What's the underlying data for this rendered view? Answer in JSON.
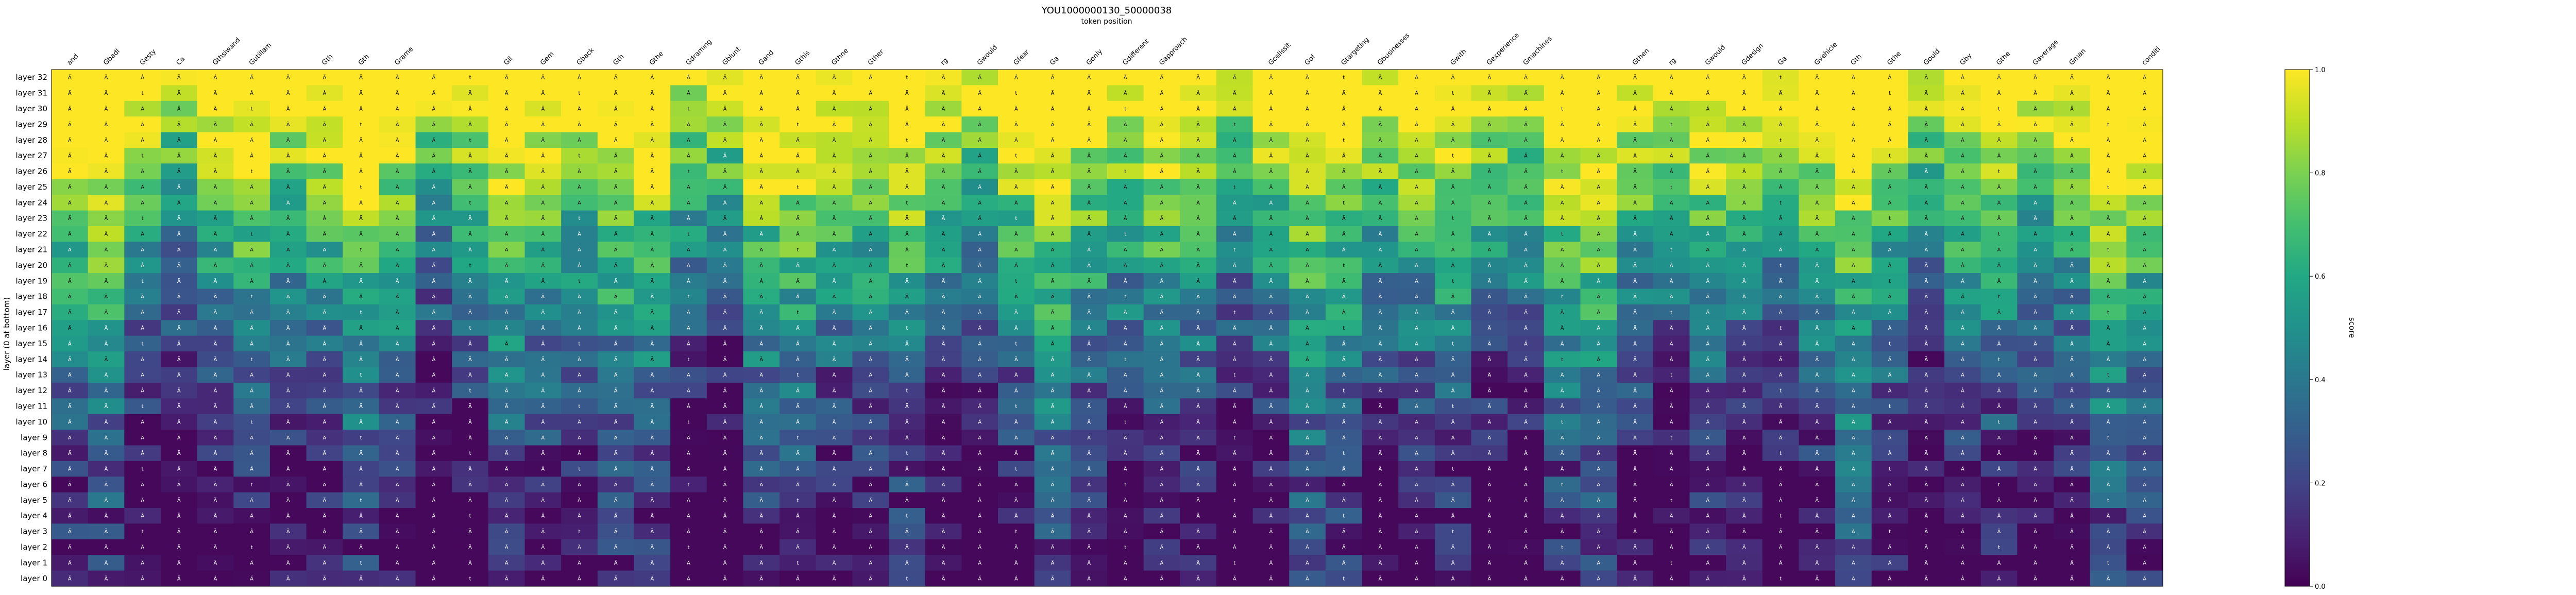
{
  "chart_data": {
    "type": "heatmap",
    "title": "YOU1000000130_50000038",
    "subtitle": "token position",
    "ylabel": "layer (0 at bottom)",
    "colorbar_label": "score",
    "colorbar_ticks": [
      "0.0",
      "0.2",
      "0.4",
      "0.6",
      "0.8",
      "1.0"
    ],
    "value_range": [
      0,
      1
    ],
    "colormap": "viridis",
    "x_tokens": [
      "and",
      "Gbadl",
      "Gesty",
      "Ca",
      "Gthsiwand",
      "Gutillam",
      "",
      "Gth",
      "Gth",
      "Grame",
      "",
      "",
      "Gll",
      "Gem",
      "Gback",
      "Gth",
      "Gthe",
      "Gdraming",
      "Gblunt",
      "Gand",
      "Gthis",
      "Gthne",
      "Gther",
      "",
      "rg",
      "Gwould",
      "Gfear",
      "Ga",
      "Gonly",
      "Gdifferent",
      "Gapproach",
      "",
      "",
      "Gcellssit",
      "Gof",
      "Gtargeting",
      "Gbusinesses",
      "",
      "Gwith",
      "Gexperience",
      "Gmachines",
      "",
      "",
      "Gthen",
      "rg",
      "Gwould",
      "Gdesign",
      "Ga",
      "Gvehicle",
      "Gth",
      "Gthe",
      "Gould",
      "Gby",
      "Gthe",
      "Gaverage",
      "Gman",
      "",
      "conditi"
    ],
    "y_layers": [
      "layer 32",
      "layer 31",
      "layer 30",
      "layer 29",
      "layer 28",
      "layer 27",
      "layer 26",
      "layer 25",
      "layer 24",
      "layer 23",
      "layer 22",
      "layer 21",
      "layer 20",
      "layer 19",
      "layer 18",
      "layer 17",
      "layer 16",
      "layer 15",
      "layer 14",
      "layer 13",
      "layer 12",
      "layer 11",
      "layer 10",
      "layer 9",
      "layer 8",
      "layer 7",
      "layer 6",
      "layer 5",
      "layer 4",
      "layer 3",
      "layer 2",
      "layer 1",
      "layer 0"
    ],
    "cell_labels": [
      "Ä",
      "Ä",
      "Â",
      "Ä",
      "Â",
      "t",
      "Ä",
      "Ä",
      "Ä",
      "Ä",
      "Ä",
      "Ä"
    ],
    "grid": false,
    "legend": "colorbar-right"
  }
}
